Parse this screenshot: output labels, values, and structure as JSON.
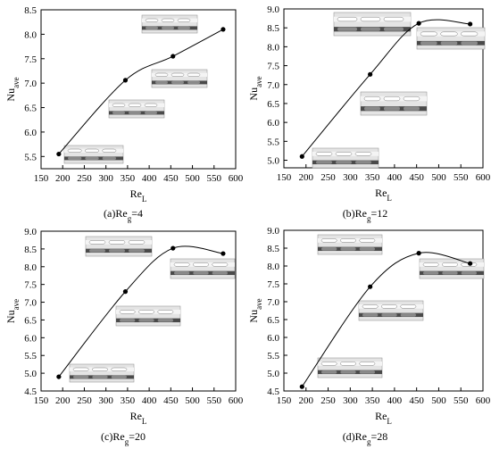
{
  "chart_data": [
    {
      "type": "line",
      "x": [
        191,
        345,
        455,
        571
      ],
      "series": [
        {
          "values": [
            5.55,
            7.06,
            7.55,
            8.1
          ]
        }
      ],
      "xlim": [
        150,
        600
      ],
      "ylim": [
        5.25,
        8.5
      ],
      "xticks": [
        "150",
        "200",
        "250",
        "300",
        "350",
        "400",
        "450",
        "500",
        "550",
        "600"
      ],
      "yticks": [
        "5.5",
        "6.0",
        "6.5",
        "7.0",
        "7.5",
        "8.0",
        "8.5"
      ],
      "xlabel": {
        "base": "Re",
        "sub": "L"
      },
      "ylabel": {
        "base": "Nu",
        "sub": "ave"
      },
      "caption": "(a)Reg=4"
    },
    {
      "type": "line",
      "x": [
        191,
        345,
        455,
        571
      ],
      "series": [
        {
          "values": [
            5.1,
            7.27,
            8.62,
            8.6
          ]
        }
      ],
      "xlim": [
        150,
        600
      ],
      "ylim": [
        4.8,
        9.0
      ],
      "xticks": [
        "150",
        "200",
        "250",
        "300",
        "350",
        "400",
        "450",
        "500",
        "550",
        "600"
      ],
      "yticks": [
        "5.0",
        "5.5",
        "6.0",
        "6.5",
        "7.0",
        "7.5",
        "8.0",
        "8.5",
        "9.0"
      ],
      "xlabel": {
        "base": "Re",
        "sub": "L"
      },
      "ylabel": {
        "base": "Nu",
        "sub": "ave"
      },
      "caption": "(b)Reg=12"
    },
    {
      "type": "line",
      "x": [
        191,
        345,
        455,
        571
      ],
      "series": [
        {
          "values": [
            4.9,
            7.3,
            8.52,
            8.37
          ]
        }
      ],
      "xlim": [
        150,
        600
      ],
      "ylim": [
        4.5,
        9.0
      ],
      "xticks": [
        "150",
        "200",
        "250",
        "300",
        "350",
        "400",
        "450",
        "500",
        "550",
        "600"
      ],
      "yticks": [
        "4.5",
        "5.0",
        "5.5",
        "6.0",
        "6.5",
        "7.0",
        "7.5",
        "8.0",
        "8.5",
        "9.0"
      ],
      "xlabel": {
        "base": "Re",
        "sub": "L"
      },
      "ylabel": {
        "base": "Nu",
        "sub": "ave"
      },
      "caption": "(c)Reg=20"
    },
    {
      "type": "line",
      "x": [
        191,
        345,
        455,
        571
      ],
      "series": [
        {
          "values": [
            4.62,
            7.42,
            8.36,
            8.07
          ]
        }
      ],
      "xlim": [
        150,
        600
      ],
      "ylim": [
        4.5,
        9.0
      ],
      "xticks": [
        "150",
        "200",
        "250",
        "300",
        "350",
        "400",
        "450",
        "500",
        "550",
        "600"
      ],
      "yticks": [
        "4.5",
        "5.0",
        "5.5",
        "6.0",
        "6.5",
        "7.0",
        "7.5",
        "8.0",
        "8.5",
        "9.0"
      ],
      "xlabel": {
        "base": "Re",
        "sub": "L"
      },
      "ylabel": {
        "base": "Nu",
        "sub": "ave"
      },
      "caption": "(d)Reg=28"
    }
  ]
}
